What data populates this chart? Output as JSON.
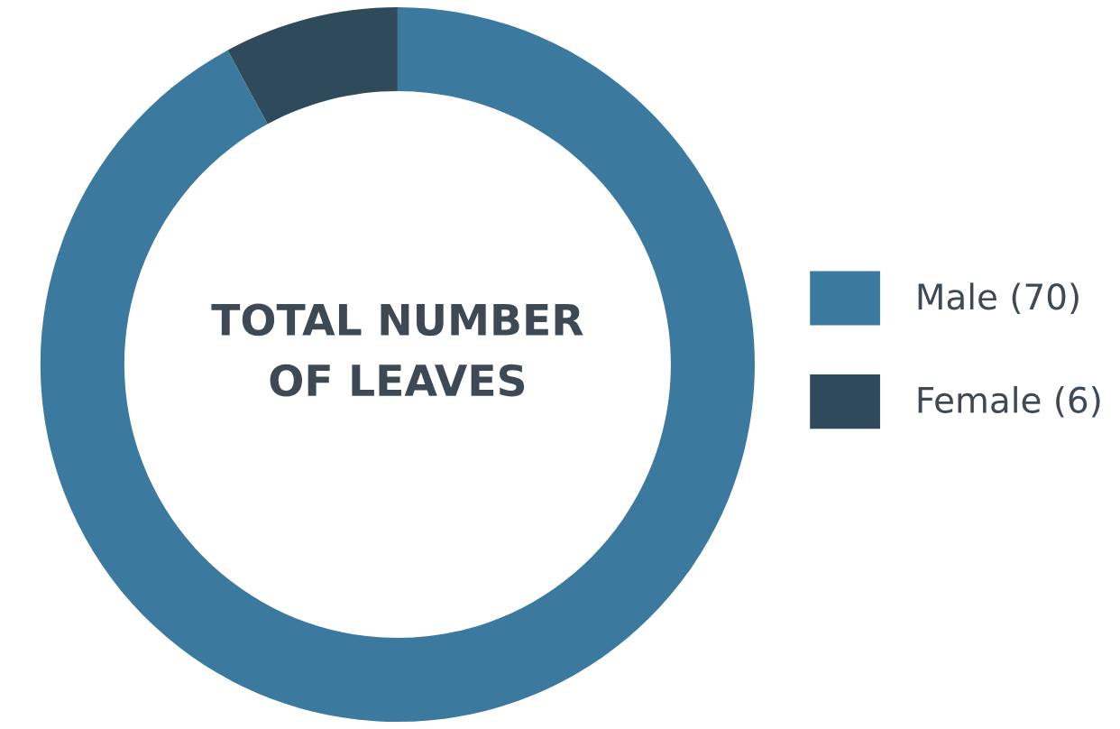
{
  "chart_data": {
    "type": "donut",
    "title": "TOTAL NUMBER\nOF LEAVES",
    "categories": [
      "Male (70)",
      "Female (6)"
    ],
    "values": [
      70,
      6
    ],
    "colors": [
      "#3b7a9e",
      "#2f4a5a"
    ],
    "legend": "right"
  }
}
